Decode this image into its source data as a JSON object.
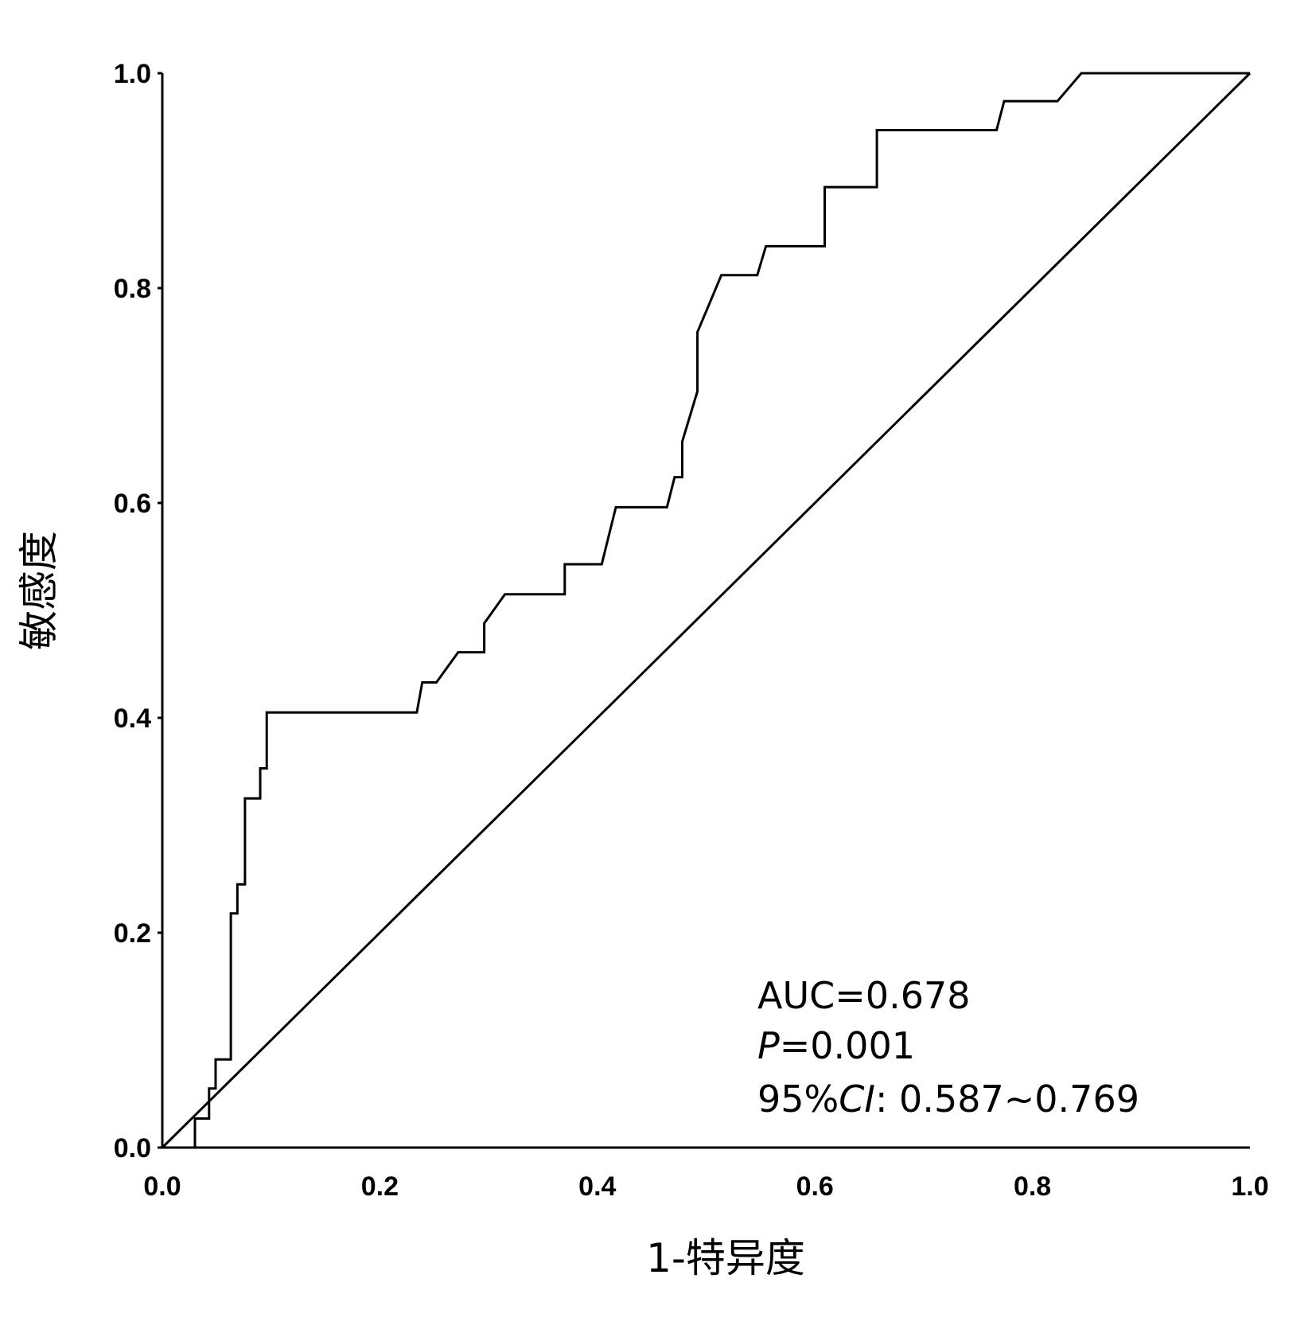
{
  "chart_data": {
    "type": "line",
    "title": "",
    "xlabel": "1-特异度",
    "ylabel": "敏感度",
    "xlim": [
      0,
      1
    ],
    "ylim": [
      0,
      1
    ],
    "xticks": [
      "0.0",
      "0.2",
      "0.4",
      "0.6",
      "0.8",
      "1.0"
    ],
    "yticks": [
      "0.0",
      "0.2",
      "0.4",
      "0.6",
      "0.8",
      "1.0"
    ],
    "grid": false,
    "series": [
      {
        "role": "roc-curve",
        "x": [
          0,
          0.03,
          0.03,
          0.043,
          0.043,
          0.049,
          0.049,
          0.063,
          0.063,
          0.069,
          0.069,
          0.076,
          0.076,
          0.09,
          0.09,
          0.096,
          0.096,
          0.234,
          0.239,
          0.252,
          0.272,
          0.296,
          0.296,
          0.315,
          0.37,
          0.37,
          0.404,
          0.417,
          0.464,
          0.471,
          0.478,
          0.478,
          0.492,
          0.492,
          0.514,
          0.547,
          0.555,
          0.609,
          0.609,
          0.657,
          0.657,
          0.767,
          0.774,
          0.823,
          0.845,
          1.0
        ],
        "y": [
          0,
          0,
          0.027,
          0.027,
          0.055,
          0.055,
          0.082,
          0.082,
          0.218,
          0.218,
          0.245,
          0.245,
          0.325,
          0.325,
          0.353,
          0.353,
          0.405,
          0.405,
          0.433,
          0.433,
          0.461,
          0.461,
          0.488,
          0.515,
          0.515,
          0.543,
          0.543,
          0.596,
          0.596,
          0.624,
          0.624,
          0.657,
          0.704,
          0.759,
          0.812,
          0.812,
          0.839,
          0.839,
          0.894,
          0.894,
          0.947,
          0.947,
          0.974,
          0.974,
          1.0,
          1.0
        ]
      },
      {
        "role": "reference-line",
        "x": [
          0,
          1
        ],
        "y": [
          0,
          1
        ]
      }
    ],
    "annotations": {
      "auc": "AUC=0.678",
      "p_label": "P",
      "p_value": "=0.001",
      "ci_prefix": "95%",
      "ci_label": "CI",
      "ci_value": ":  0.587~0.769"
    },
    "line_color": "#000000"
  }
}
